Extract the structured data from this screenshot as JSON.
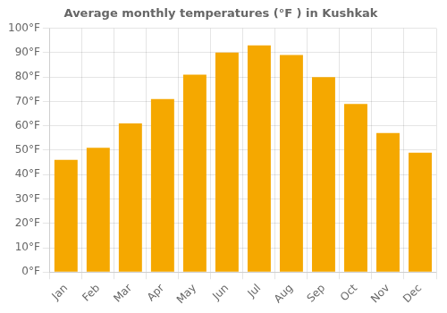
{
  "chart_data": {
    "type": "bar",
    "title": "Average monthly temperatures (°F ) in Kushkak",
    "categories": [
      "Jan",
      "Feb",
      "Mar",
      "Apr",
      "May",
      "Jun",
      "Jul",
      "Aug",
      "Sep",
      "Oct",
      "Nov",
      "Dec"
    ],
    "values": [
      46,
      51,
      61,
      71,
      81,
      90,
      93,
      89,
      80,
      69,
      57,
      49
    ],
    "color": "#F5A800",
    "ylim": [
      0,
      100
    ],
    "yticks": [
      {
        "value": 0,
        "label": "0°F"
      },
      {
        "value": 10,
        "label": "10°F"
      },
      {
        "value": 20,
        "label": "20°F"
      },
      {
        "value": 30,
        "label": "30°F"
      },
      {
        "value": 40,
        "label": "40°F"
      },
      {
        "value": 50,
        "label": "50°F"
      },
      {
        "value": 60,
        "label": "60°F"
      },
      {
        "value": 70,
        "label": "70°F"
      },
      {
        "value": 80,
        "label": "80°F"
      },
      {
        "value": 90,
        "label": "90°F"
      },
      {
        "value": 100,
        "label": "100°F"
      }
    ],
    "grid": true
  }
}
